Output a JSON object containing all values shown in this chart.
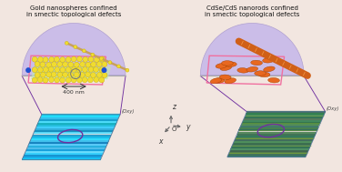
{
  "bg_color": "#f2e6e0",
  "title_left": "Gold nanospheres confined\nin smectic topological defects",
  "title_right": "CdSe/CdS nanorods confined\nin smectic topological defects",
  "scale_label": "400 nm",
  "lavender": "#cbbde8",
  "lavender_edge": "#b0a0d0",
  "pink_rect": "#f070a0",
  "green_fill": "#c0e8b0",
  "yellow_sphere": "#f0dc30",
  "yellow_sphere_edge": "#c0a800",
  "orange_rod": "#e86820",
  "orange_rod_edge": "#a04000",
  "purple_line": "#7030a0",
  "gray_color": "#909090",
  "blue_dot": "#2050d0",
  "afm_left_colors": [
    "#00cfff",
    "#00aaee",
    "#0088cc",
    "#20ccff",
    "#60ddff",
    "#0099dd",
    "#40bbee",
    "#10aade",
    "#50ccff",
    "#0077bb",
    "#30bbee",
    "#20ddff",
    "#00bbee",
    "#1099cc",
    "#50ddff",
    "#0088bb",
    "#20aadd",
    "#30ccff",
    "#10bbdd",
    "#00aabb",
    "#40ddff",
    "#0099cc",
    "#20bbee",
    "#10ddff",
    "#00ccee"
  ],
  "afm_right_colors": [
    "#207060",
    "#306850",
    "#487840",
    "#305840",
    "#408858",
    "#206848",
    "#387050",
    "#286040",
    "#408850",
    "#306050",
    "#487840",
    "#207050",
    "#306848",
    "#488050",
    "#206050",
    "#387840",
    "#307060",
    "#488848",
    "#206840",
    "#308050",
    "#487050",
    "#206848",
    "#388058",
    "#207840",
    "#306050"
  ],
  "afm_right_accent": "#a0c820",
  "title_fontsize": 5.0,
  "axis_label_fontsize": 5.5,
  "scale_fontsize": 4.5
}
